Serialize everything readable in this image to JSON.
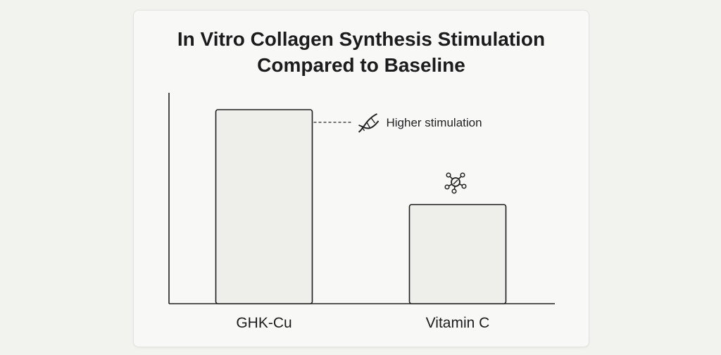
{
  "chart_data": {
    "type": "bar",
    "title": [
      "In Vitro Collagen Synthesis Stimulation",
      "Compared to Baseline"
    ],
    "categories": [
      "GHK-Cu",
      "Vitamin C"
    ],
    "values": [
      92,
      47
    ],
    "ylim": [
      0,
      100
    ],
    "xlabel": "",
    "ylabel": "",
    "grid": false,
    "legend": "none",
    "annotations": [
      {
        "category": "GHK-Cu",
        "text": "Higher stimulation",
        "icon": "dna-icon"
      },
      {
        "category": "Vitamin C",
        "text": "",
        "icon": "molecule-icon"
      }
    ],
    "colors": {
      "bar_fill": "#eeeeeb",
      "bar_stroke": "#1f1f1f",
      "axis": "#1f1f1f",
      "text": "#1c1c1c"
    }
  }
}
